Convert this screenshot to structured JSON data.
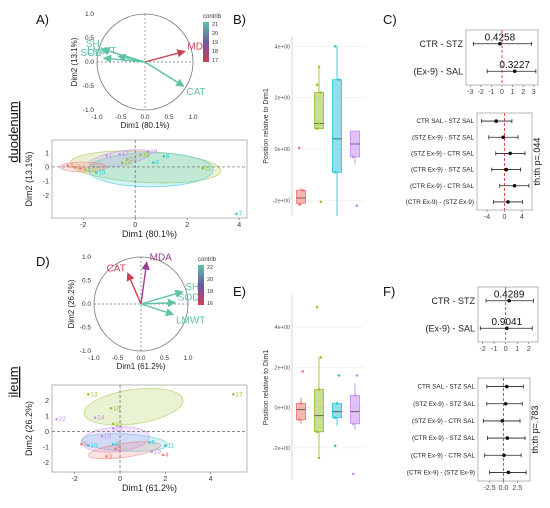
{
  "row_labels": [
    "duodenum",
    "ileum"
  ],
  "panel_letters": [
    "A)",
    "B)",
    "C)",
    "D)",
    "E)",
    "F)"
  ],
  "colors": {
    "ctr_sal": "#f07b76",
    "ctr_ex9": "#9ec23a",
    "stz_sal": "#33c7d9",
    "stz_ex9": "#c88ef0",
    "arrow_low": "#cf3f52",
    "arrow_mid": "#6a58a6",
    "arrow_high": "#5fc2a5"
  },
  "chart_data": [
    {
      "id": "A_circle",
      "type": "scatter",
      "xlabel": "Dim1 (80.1%)",
      "ylabel": "Dim2 (13.1%)",
      "xlim": [
        -1.0,
        1.0
      ],
      "ylim": [
        -1.0,
        1.0
      ],
      "xticks": [
        "-1.0",
        "-0.5",
        "0.0",
        "0.5",
        "1.0"
      ],
      "yticks": [
        "-1.0",
        "-0.5",
        "0.0",
        "0.5",
        "1.0"
      ],
      "legend_title": "contrib",
      "legend_ticks": [
        "21",
        "20",
        "19",
        "18",
        "17"
      ],
      "variables": [
        {
          "name": "SH",
          "x": -0.9,
          "y": 0.27,
          "color": "#5fc2a5"
        },
        {
          "name": "LMWT",
          "x": -0.55,
          "y": 0.12,
          "color": "#5fc2a5"
        },
        {
          "name": "SOD",
          "x": -0.85,
          "y": 0.08,
          "color": "#5fc2a5"
        },
        {
          "name": "MDA",
          "x": 0.82,
          "y": 0.22,
          "color": "#cf3f52"
        },
        {
          "name": "CAT",
          "x": 0.8,
          "y": -0.5,
          "color": "#5fc2a5"
        }
      ]
    },
    {
      "id": "A_scores",
      "type": "scatter",
      "xlabel": "Dim1 (80.1%)",
      "ylabel": "Dim2 (13.1%)",
      "xlim": [
        -3.2,
        4.3
      ],
      "ylim": [
        -3.6,
        1.9
      ],
      "xticks": [
        "-2",
        "0",
        "2",
        "4"
      ],
      "yticks": [
        "-2",
        "-1",
        "0",
        "1"
      ],
      "groups": [
        {
          "name": "CTR SAL",
          "color": "#f07b76",
          "points": [
            {
              "l": "2",
              "x": -2.6,
              "y": 0.1
            },
            {
              "l": "4",
              "x": -2.1,
              "y": -0.1
            },
            {
              "l": "3",
              "x": -2.3,
              "y": 0.0
            }
          ]
        },
        {
          "name": "CTR Ex-9",
          "color": "#9ec23a",
          "points": [
            {
              "l": "12",
              "x": -1.9,
              "y": -0.2
            },
            {
              "l": "14",
              "x": -0.5,
              "y": 0.3
            },
            {
              "l": "13",
              "x": -0.3,
              "y": 0.55
            },
            {
              "l": "15",
              "x": 0.2,
              "y": 0.85
            },
            {
              "l": "11",
              "x": 2.6,
              "y": -0.1
            }
          ]
        },
        {
          "name": "STZ SAL",
          "color": "#33c7d9",
          "points": [
            {
              "l": "10",
              "x": -1.5,
              "y": -0.4
            },
            {
              "l": "8",
              "x": 0.7,
              "y": 0.3
            },
            {
              "l": "6",
              "x": 1.1,
              "y": 0.75
            },
            {
              "l": "7",
              "x": 3.9,
              "y": -3.3
            }
          ]
        },
        {
          "name": "STZ Ex-9",
          "color": "#c88ef0",
          "points": [
            {
              "l": "1",
              "x": -1.1,
              "y": 0.8
            },
            {
              "l": "17",
              "x": -0.6,
              "y": 0.9
            },
            {
              "l": "18",
              "x": 0.5,
              "y": 1.1
            }
          ]
        }
      ]
    },
    {
      "id": "B",
      "type": "box",
      "ylabel": "Position relative to Dim1",
      "ylim": [
        -2.6,
        4.4
      ],
      "yticks": [
        "4e+00",
        "2e+00",
        "0e+00",
        "-2e+00"
      ],
      "ytick_values": [
        4,
        2,
        0,
        -2
      ],
      "boxes": [
        {
          "color": "#f07b76",
          "min": -2.2,
          "q1": -2.1,
          "median": -1.9,
          "q3": -1.6,
          "max": -1.5,
          "points": [
            -2.15,
            -1.9,
            -1.6,
            0.05
          ]
        },
        {
          "color": "#9ec23a",
          "min": 0.8,
          "q1": 0.8,
          "median": 1.0,
          "q3": 2.2,
          "max": 3.2,
          "points": [
            0.8,
            1.0,
            2.2,
            2.5,
            3.2,
            -2.05
          ]
        },
        {
          "color": "#33c7d9",
          "min": -2.6,
          "q1": -0.9,
          "median": 0.4,
          "q3": 2.7,
          "max": 4.0,
          "points": [
            -0.9,
            0.4,
            2.7,
            4.0
          ]
        },
        {
          "color": "#c88ef0",
          "min": -0.6,
          "q1": -0.3,
          "median": 0.2,
          "q3": 0.7,
          "max": 0.7,
          "points": [
            -0.3,
            0.2,
            -2.2
          ]
        }
      ]
    },
    {
      "id": "C_top",
      "type": "forest",
      "rows": [
        {
          "label": "CTR - STZ",
          "est": -0.2,
          "lo": -2.7,
          "hi": 2.8,
          "value_label": "0.4258"
        },
        {
          "label": "(Ex-9) - SAL",
          "est": 1.2,
          "lo": -1.4,
          "hi": 3.2,
          "value_label": "0.3227"
        }
      ],
      "xlim": [
        -3.4,
        3.4
      ],
      "xticks": [
        "-3",
        "-2",
        "-1",
        "0",
        "1",
        "2",
        "3"
      ],
      "xtick_values": [
        -3,
        -2,
        -1,
        0,
        1,
        2,
        3
      ]
    },
    {
      "id": "C_bottom",
      "type": "forest",
      "rows": [
        {
          "label": "CTR SAL - STZ SAL",
          "est": -1.9,
          "lo": -5.3,
          "hi": 1.7
        },
        {
          "label": "(STZ Ex-9) - STZ SAL",
          "est": -0.3,
          "lo": -3.6,
          "hi": 3.1
        },
        {
          "label": "(STZ Ex-9) - CTR SAL",
          "est": 1.3,
          "lo": -2.0,
          "hi": 4.7
        },
        {
          "label": "(CTR Ex-9) - STZ SAL",
          "est": 0.4,
          "lo": -2.9,
          "hi": 3.7
        },
        {
          "label": "(CTR Ex-9) - CTR SAL",
          "est": 2.3,
          "lo": -1.1,
          "hi": 5.6
        },
        {
          "label": "(CTR Ex-9) - (STZ Ex-9)",
          "est": 0.8,
          "lo": -2.5,
          "hi": 4.1
        }
      ],
      "xlim": [
        -6.3,
        6.3
      ],
      "xticks": [
        "-4",
        "0",
        "4"
      ],
      "xtick_values": [
        -4,
        0,
        4
      ],
      "annotation": "th:th p=.044"
    },
    {
      "id": "D_circle",
      "type": "scatter",
      "xlabel": "Dim1 (61.2%)",
      "ylabel": "Dim2 (26.2%)",
      "xlim": [
        -1.0,
        1.0
      ],
      "ylim": [
        -1.0,
        1.0
      ],
      "xticks": [
        "-1.0",
        "-0.5",
        "0.0",
        "0.5",
        "1.0"
      ],
      "yticks": [
        "-1.0",
        "-0.5",
        "0.0",
        "0.5",
        "1.0"
      ],
      "legend_title": "contrib",
      "legend_ticks": [
        "22",
        "20",
        "18",
        "16"
      ],
      "variables": [
        {
          "name": "MDA",
          "x": 0.12,
          "y": 0.88,
          "color": "#9b3f93"
        },
        {
          "name": "CAT",
          "x": -0.28,
          "y": 0.65,
          "color": "#cf3f52"
        },
        {
          "name": "SH",
          "x": 0.88,
          "y": 0.26,
          "color": "#5fc2a5"
        },
        {
          "name": "SOD",
          "x": 0.72,
          "y": 0.03,
          "color": "#5fc2a5"
        },
        {
          "name": "LMWT",
          "x": 0.68,
          "y": -0.22,
          "color": "#5fc2a5"
        }
      ]
    },
    {
      "id": "D_scores",
      "type": "scatter",
      "xlabel": "Dim1 (61.2%)",
      "ylabel": "Dim2 (26.2%)",
      "xlim": [
        -3.0,
        5.6
      ],
      "ylim": [
        -2.6,
        3.0
      ],
      "xticks": [
        "-2",
        "0",
        "2",
        "4"
      ],
      "yticks": [
        "-2",
        "-1",
        "0",
        "1",
        "2"
      ],
      "groups": [
        {
          "name": "CTR SAL",
          "color": "#f07b76",
          "points": [
            {
              "l": "3",
              "x": -0.6,
              "y": -1.6
            },
            {
              "l": "5",
              "x": -0.2,
              "y": -1.1
            },
            {
              "l": "4",
              "x": 1.9,
              "y": -1.5
            },
            {
              "l": "2",
              "x": -1.7,
              "y": -0.8
            }
          ]
        },
        {
          "name": "CTR Ex-9",
          "color": "#9ec23a",
          "points": [
            {
              "l": "13",
              "x": -1.4,
              "y": 2.4
            },
            {
              "l": "16",
              "x": -0.4,
              "y": 1.5
            },
            {
              "l": "15",
              "x": -0.3,
              "y": 0.5
            },
            {
              "l": "17",
              "x": 5.0,
              "y": 2.4
            }
          ]
        },
        {
          "name": "STZ SAL",
          "color": "#33c7d9",
          "points": [
            {
              "l": "10",
              "x": -1.4,
              "y": -0.9
            },
            {
              "l": "8",
              "x": -0.3,
              "y": -0.8
            },
            {
              "l": "11",
              "x": 2.0,
              "y": -0.9
            },
            {
              "l": "6",
              "x": 1.3,
              "y": -0.7
            }
          ]
        },
        {
          "name": "STZ Ex-9",
          "color": "#c88ef0",
          "points": [
            {
              "l": "22",
              "x": -2.8,
              "y": 0.8
            },
            {
              "l": "14",
              "x": -1.1,
              "y": 0.9
            },
            {
              "l": "18",
              "x": -0.8,
              "y": -0.3
            },
            {
              "l": "23",
              "x": -0.3,
              "y": 0.2
            },
            {
              "l": "19",
              "x": 1.4,
              "y": -1.3
            }
          ]
        }
      ]
    },
    {
      "id": "E",
      "type": "box",
      "ylabel": "Position relative to Dim1",
      "ylim": [
        -3.6,
        5.6
      ],
      "yticks": [
        "4e+00",
        "2e+00",
        "0e+00",
        "-2e+00"
      ],
      "ytick_values": [
        4,
        2,
        0,
        -2
      ],
      "boxes": [
        {
          "color": "#f07b76",
          "min": -0.8,
          "q1": -0.6,
          "median": -0.1,
          "q3": 0.2,
          "max": 0.5,
          "points": [
            -0.6,
            0.2,
            1.8
          ]
        },
        {
          "color": "#9ec23a",
          "min": -2.5,
          "q1": -1.2,
          "median": -0.4,
          "q3": 0.9,
          "max": 2.5,
          "points": [
            -1.2,
            0.9,
            2.5,
            5.0,
            -2.5
          ]
        },
        {
          "color": "#33c7d9",
          "min": -0.9,
          "q1": -0.5,
          "median": -0.2,
          "q3": 0.2,
          "max": 0.3,
          "points": [
            -0.5,
            0.2,
            1.6,
            -1.9
          ]
        },
        {
          "color": "#c88ef0",
          "min": -1.1,
          "q1": -0.8,
          "median": -0.2,
          "q3": 0.6,
          "max": 1.2,
          "points": [
            -0.8,
            0.6,
            1.6,
            -3.3
          ]
        }
      ]
    },
    {
      "id": "F_top",
      "type": "forest",
      "rows": [
        {
          "label": "CTR - STZ",
          "est": 0.3,
          "lo": -1.7,
          "hi": 2.4,
          "value_label": "0.4289"
        },
        {
          "label": "(Ex-9) - SAL",
          "est": 0.1,
          "lo": -2.2,
          "hi": 2.3,
          "value_label": "0.9041"
        }
      ],
      "xlim": [
        -2.4,
        2.8
      ],
      "xticks": [
        "-2",
        "-1",
        "0",
        "1",
        "2"
      ],
      "xtick_values": [
        -2,
        -1,
        0,
        1,
        2
      ]
    },
    {
      "id": "F_bottom",
      "type": "forest",
      "rows": [
        {
          "label": "CTR SAL - STZ SAL",
          "est": 0.6,
          "lo": -3.0,
          "hi": 3.6
        },
        {
          "label": "(STZ Ex-9) - STZ SAL",
          "est": 0.4,
          "lo": -3.0,
          "hi": 3.4
        },
        {
          "label": "(STZ Ex-9) - CTR SAL",
          "est": -0.2,
          "lo": -3.6,
          "hi": 3.0
        },
        {
          "label": "(CTR Ex-9) - STZ SAL",
          "est": 0.7,
          "lo": -2.9,
          "hi": 3.9
        },
        {
          "label": "(CTR Ex-9) - CTR SAL",
          "est": 0.1,
          "lo": -3.4,
          "hi": 3.2
        },
        {
          "label": "(CTR Ex-9) - (STZ Ex-9)",
          "est": 0.9,
          "lo": -2.5,
          "hi": 4.1
        }
      ],
      "xlim": [
        -4.6,
        4.8
      ],
      "xticks": [
        "-2.5",
        "0.0",
        "2.5"
      ],
      "xtick_values": [
        -2.5,
        0,
        2.5
      ],
      "annotation": "th:th p=.783"
    }
  ]
}
